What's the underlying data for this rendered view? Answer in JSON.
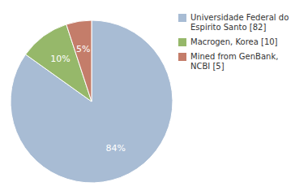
{
  "chart_data": {
    "type": "pie",
    "categories": [
      "Universidade Federal do\nEspirito Santo [82]",
      "Macrogen, Korea [10]",
      "Mined from GenBank, NCBI [5]"
    ],
    "values": [
      84,
      10,
      5
    ],
    "value_labels": [
      "84%",
      "10%",
      "5%"
    ],
    "colors": [
      "#a8bcd4",
      "#96b86a",
      "#c47d6a"
    ],
    "data_labels": true,
    "legend": "right"
  }
}
